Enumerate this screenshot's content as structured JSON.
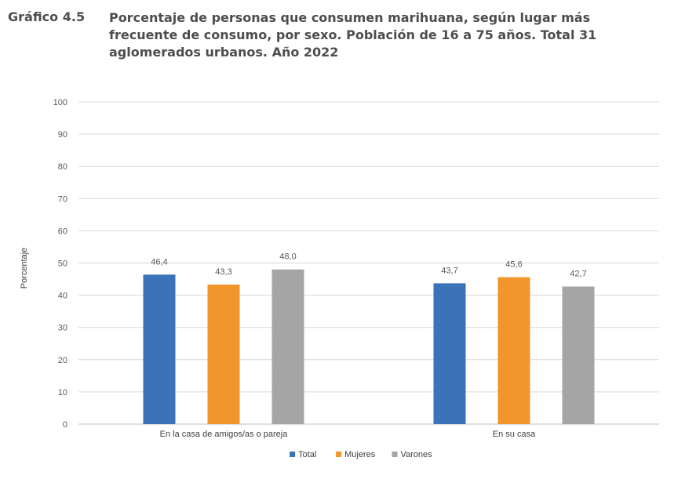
{
  "heading": {
    "label": "Gráfico 4.5",
    "title": "Porcentaje de personas que consumen marihuana, según lugar más frecuente de consumo, por sexo. Población de 16 a 75 años. Total 31 aglomerados urbanos. Año 2022"
  },
  "chart_data": {
    "type": "bar",
    "title": "Porcentaje de personas que consumen marihuana, según lugar más frecuente de consumo, por sexo. Población de 16 a 75 años. Total 31 aglomerados urbanos. Año 2022",
    "xlabel": "",
    "ylabel": "Porcentaje",
    "ylim": [
      0,
      100
    ],
    "yticks": [
      0,
      10,
      20,
      30,
      40,
      50,
      60,
      70,
      80,
      90,
      100
    ],
    "grid": true,
    "legend_position": "bottom",
    "categories": [
      "En la casa de amigos/as o pareja",
      "En su casa"
    ],
    "series": [
      {
        "name": "Total",
        "color": "#3a73b8",
        "values": [
          46.4,
          43.7
        ],
        "labels": [
          "46,4",
          "43,7"
        ]
      },
      {
        "name": "Mujeres",
        "color": "#f2962b",
        "values": [
          43.3,
          45.6
        ],
        "labels": [
          "43,3",
          "45,6"
        ]
      },
      {
        "name": "Varones",
        "color": "#a5a5a5",
        "values": [
          48.0,
          42.7
        ],
        "labels": [
          "48,0",
          "42,7"
        ]
      }
    ]
  }
}
